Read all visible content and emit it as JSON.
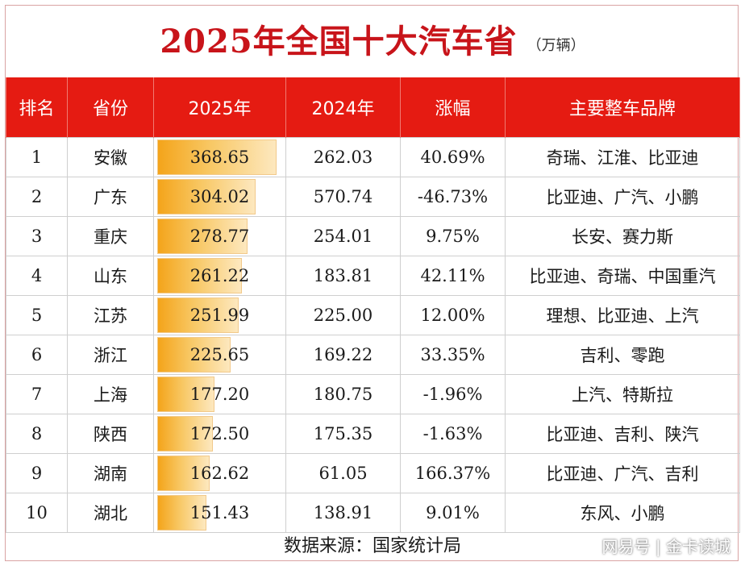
{
  "title": "2025年全国十大汽车省",
  "unit": "（万辆）",
  "headers": [
    "排名",
    "省份",
    "2025年",
    "2024年",
    "涨幅",
    "主要整车品牌"
  ],
  "rows": [
    {
      "rank": "1",
      "province": "安徽",
      "y2025": "368.65",
      "y2024": "262.03",
      "growth": "40.69%",
      "brands": "奇瑞、江淮、比亚迪"
    },
    {
      "rank": "2",
      "province": "广东",
      "y2025": "304.02",
      "y2024": "570.74",
      "growth": "-46.73%",
      "brands": "比亚迪、广汽、小鹏"
    },
    {
      "rank": "3",
      "province": "重庆",
      "y2025": "278.77",
      "y2024": "254.01",
      "growth": "9.75%",
      "brands": "长安、赛力斯"
    },
    {
      "rank": "4",
      "province": "山东",
      "y2025": "261.22",
      "y2024": "183.81",
      "growth": "42.11%",
      "brands": "比亚迪、奇瑞、中国重汽"
    },
    {
      "rank": "5",
      "province": "江苏",
      "y2025": "251.99",
      "y2024": "225.00",
      "growth": "12.00%",
      "brands": "理想、比亚迪、上汽"
    },
    {
      "rank": "6",
      "province": "浙江",
      "y2025": "225.65",
      "y2024": "169.22",
      "growth": "33.35%",
      "brands": "吉利、零跑"
    },
    {
      "rank": "7",
      "province": "上海",
      "y2025": "177.20",
      "y2024": "180.75",
      "growth": "-1.96%",
      "brands": "上汽、特斯拉"
    },
    {
      "rank": "8",
      "province": "陕西",
      "y2025": "172.50",
      "y2024": "175.35",
      "growth": "-1.63%",
      "brands": "比亚迪、吉利、陕汽"
    },
    {
      "rank": "9",
      "province": "湖南",
      "y2025": "162.62",
      "y2024": "61.05",
      "growth": "166.37%",
      "brands": "比亚迪、广汽、吉利"
    },
    {
      "rank": "10",
      "province": "湖北",
      "y2025": "151.43",
      "y2024": "138.91",
      "growth": "9.01%",
      "brands": "东风、小鹏"
    }
  ],
  "footer": "数据来源：国家统计局",
  "watermark": "网易号 | 金卡读城",
  "colors": {
    "title": "#c8141a",
    "header_bg": "#e51b12",
    "bar": "#f4a41a"
  },
  "chart_data": {
    "type": "table",
    "title": "2025年全国十大汽车省",
    "unit": "（万辆）",
    "categories": [
      "安徽",
      "广东",
      "重庆",
      "山东",
      "江苏",
      "浙江",
      "上海",
      "陕西",
      "湖南",
      "湖北"
    ],
    "series": [
      {
        "name": "2025年",
        "values": [
          368.65,
          304.02,
          278.77,
          261.22,
          251.99,
          225.65,
          177.2,
          172.5,
          162.62,
          151.43
        ]
      },
      {
        "name": "2024年",
        "values": [
          262.03,
          570.74,
          254.01,
          183.81,
          225.0,
          169.22,
          180.75,
          175.35,
          61.05,
          138.91
        ]
      },
      {
        "name": "涨幅",
        "values": [
          40.69,
          -46.73,
          9.75,
          42.11,
          12.0,
          33.35,
          -1.96,
          -1.63,
          166.37,
          9.01
        ]
      }
    ],
    "data_bars_on": "2025年"
  }
}
